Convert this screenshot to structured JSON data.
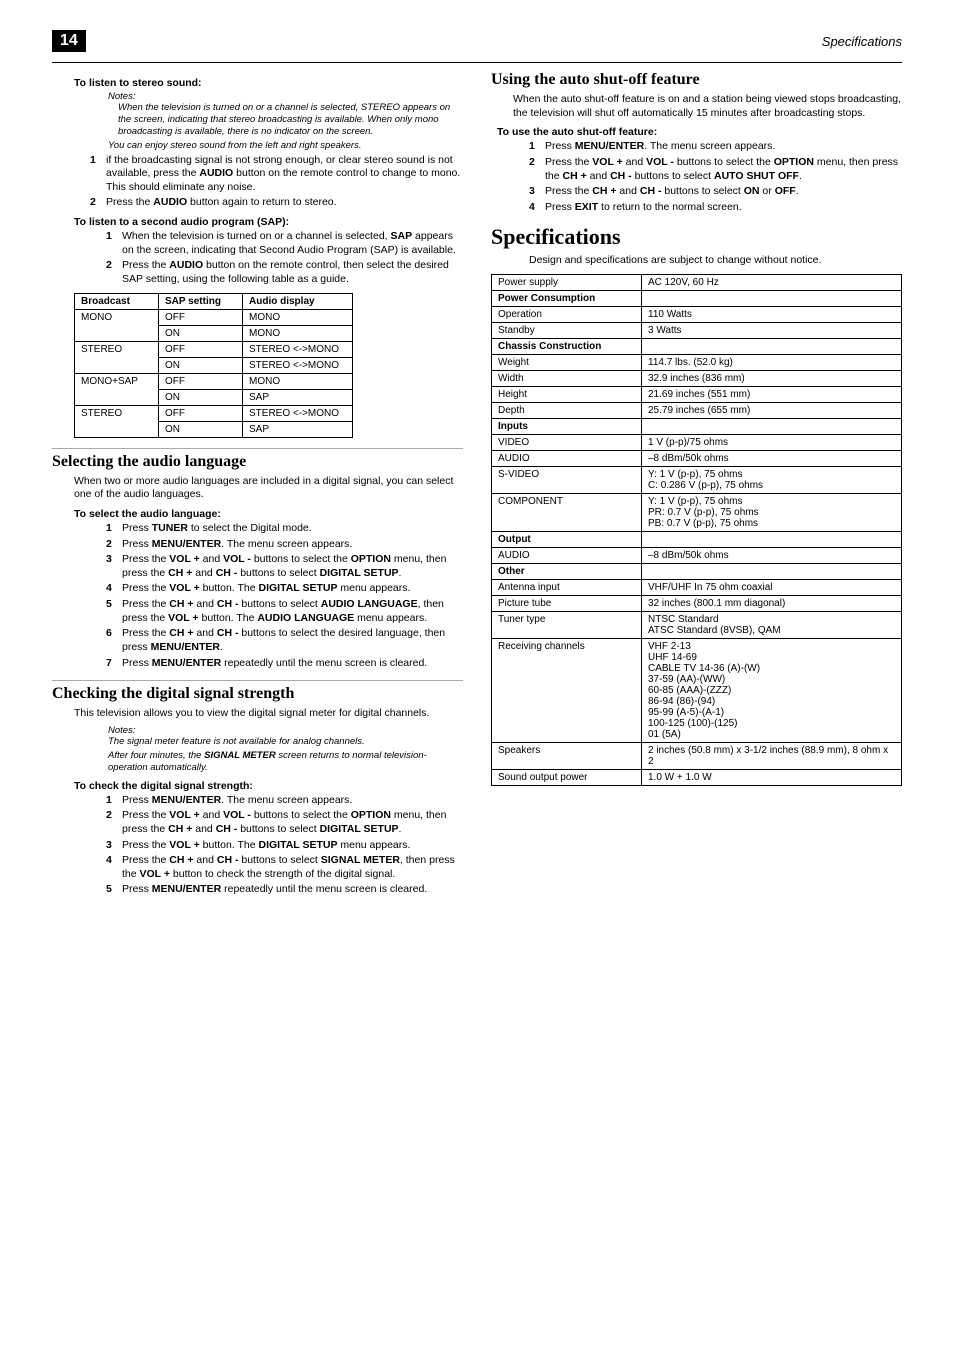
{
  "page_number": "14",
  "header_right": "Specifications",
  "left": {
    "stereo_heading": "To listen to stereo sound:",
    "notes_label": "Notes:",
    "note1": "When the television is turned on or a channel is selected, STEREO appears on the screen, indicating that stereo broadcasting is available. When only mono broadcasting is available, there is no indicator on the screen.",
    "note2": "You can enjoy stereo sound from the left and right speakers.",
    "stereo_steps": [
      {
        "n": "1",
        "pre": "if the broadcasting signal is not strong enough, or clear stereo sound is not available, press the ",
        "b1": "AUDIO",
        "post": " button on the remote control to change to mono. This should eliminate any noise."
      },
      {
        "n": "2",
        "pre": "Press the ",
        "b1": "AUDIO",
        "post": " button again to return to stereo."
      }
    ],
    "sap_heading": "To listen to a second audio program (SAP):",
    "sap_steps": [
      {
        "n": "1",
        "pre": "When the television is turned on or a channel is selected, ",
        "b1": "SAP",
        "post": " appears on the screen, indicating that Second Audio Program (SAP) is available."
      },
      {
        "n": "2",
        "pre": "Press the ",
        "b1": "AUDIO",
        "post": " button on the remote control, then select the desired SAP setting, using the following table as a guide."
      }
    ],
    "broadcast_table": {
      "headers": [
        "Broadcast",
        "SAP setting",
        "Audio display"
      ],
      "rows": [
        [
          "MONO",
          "OFF",
          "MONO"
        ],
        [
          "",
          "ON",
          "MONO"
        ],
        [
          "STEREO",
          "OFF",
          "STEREO <->MONO"
        ],
        [
          "",
          "ON",
          "STEREO <->MONO"
        ],
        [
          "MONO+SAP",
          "OFF",
          "MONO"
        ],
        [
          "",
          "ON",
          "SAP"
        ],
        [
          "STEREO",
          "OFF",
          "STEREO <->MONO"
        ],
        [
          "",
          "ON",
          "SAP"
        ]
      ]
    },
    "audio_lang_h2": "Selecting the audio language",
    "audio_lang_intro": "When two or more audio languages are included in a digital signal, you can select one of the audio languages.",
    "audio_lang_sub": "To select the audio language:",
    "audio_lang_steps": [
      {
        "n": "1",
        "text": "Press <b>TUNER</b> to select the Digital mode."
      },
      {
        "n": "2",
        "text": "Press <b>MENU/ENTER</b>. The menu screen appears."
      },
      {
        "n": "3",
        "text": "Press the <b>VOL +</b> and <b>VOL -</b> buttons to select the <b>OPTION</b> menu, then press the <b>CH +</b> and <b>CH -</b> buttons to select <b>DIGITAL SETUP</b>."
      },
      {
        "n": "4",
        "text": "Press the <b>VOL +</b> button. The <b>DIGITAL SETUP</b> menu appears."
      },
      {
        "n": "5",
        "text": "Press the <b>CH +</b> and <b>CH -</b> buttons to select <b>AUDIO LANGUAGE</b>, then press the <b>VOL +</b> button. The <b>AUDIO LANGUAGE</b> menu appears."
      },
      {
        "n": "6",
        "text": "Press the <b>CH +</b> and <b>CH -</b> buttons to select the desired language, then press <b>MENU/ENTER</b>."
      },
      {
        "n": "7",
        "text": "Press <b>MENU/ENTER</b> repeatedly until the menu screen is cleared."
      }
    ],
    "signal_h2": "Checking the digital signal strength",
    "signal_intro": "This television allows you to view the digital signal meter for digital channels.",
    "signal_notes_label": "Notes:",
    "signal_note1": "The signal meter feature is not available for analog channels.",
    "signal_note2": "After four minutes, the <b>SIGNAL METER</b> screen returns to normal television-operation automatically.",
    "signal_sub": "To check the digital signal strength:",
    "signal_steps": [
      {
        "n": "1",
        "text": "Press <b>MENU/ENTER</b>. The menu screen appears."
      },
      {
        "n": "2",
        "text": "Press the <b>VOL +</b> and <b>VOL -</b> buttons to select the <b>OPTION</b> menu, then press the <b>CH +</b> and <b>CH -</b> buttons to select <b>DIGITAL SETUP</b>."
      },
      {
        "n": "3",
        "text": "Press the <b>VOL +</b> button. The <b>DIGITAL SETUP</b> menu appears."
      },
      {
        "n": "4",
        "text": "Press the <b>CH +</b> and <b>CH -</b> buttons to select <b>SIGNAL METER</b>, then press the <b>VOL +</b> button to check the strength of the digital signal."
      },
      {
        "n": "5",
        "text": "Press <b>MENU/ENTER</b> repeatedly until the menu screen is cleared."
      }
    ]
  },
  "right": {
    "shutoff_h2": "Using the auto shut-off feature",
    "shutoff_intro": "When the auto shut-off feature is on and a station being viewed stops broadcasting, the television will shut off automatically 15 minutes after broadcasting stops.",
    "shutoff_sub": "To use the auto shut-off feature:",
    "shutoff_steps": [
      {
        "n": "1",
        "text": "Press <b>MENU/ENTER</b>. The menu screen appears."
      },
      {
        "n": "2",
        "text": "Press the <b>VOL +</b> and <b>VOL -</b> buttons to select the <b>OPTION</b> menu, then press the <b>CH +</b> and <b>CH -</b> buttons to select <b>AUTO SHUT OFF</b>."
      },
      {
        "n": "3",
        "text": "Press the <b>CH +</b> and <b>CH -</b> buttons to select <b>ON</b> or <b>OFF</b>."
      },
      {
        "n": "4",
        "text": "Press <b>EXIT</b> to return to the normal screen."
      }
    ],
    "spec_h1": "Specifications",
    "spec_intro": "Design and specifications are subject to change without notice.",
    "spec_rows": [
      {
        "k": "Power supply",
        "v": "AC 120V, 60 Hz"
      },
      {
        "section": "Power Consumption"
      },
      {
        "k": "Operation",
        "v": "110 Watts"
      },
      {
        "k": "Standby",
        "v": "3 Watts"
      },
      {
        "section": "Chassis Construction"
      },
      {
        "k": "Weight",
        "v": "114.7 lbs. (52.0 kg)"
      },
      {
        "k": "Width",
        "v": "32.9 inches (836 mm)"
      },
      {
        "k": "Height",
        "v": "21.69 inches (551 mm)"
      },
      {
        "k": "Depth",
        "v": "25.79 inches (655 mm)"
      },
      {
        "section": "Inputs"
      },
      {
        "k": "VIDEO",
        "v": "1 V (p-p)/75 ohms"
      },
      {
        "k": "AUDIO",
        "v": "–8 dBm/50k ohms"
      },
      {
        "k": "S-VIDEO",
        "v": "Y: 1 V (p-p), 75 ohms\nC: 0.286 V (p-p), 75 ohms"
      },
      {
        "k": "COMPONENT",
        "v": "Y: 1 V (p-p), 75 ohms\nPR: 0.7 V (p-p), 75 ohms\nPB: 0.7 V (p-p), 75 ohms"
      },
      {
        "section": "Output"
      },
      {
        "k": "AUDIO",
        "v": "–8 dBm/50k ohms"
      },
      {
        "section": "Other"
      },
      {
        "k": "Antenna input",
        "v": "VHF/UHF In 75 ohm coaxial"
      },
      {
        "k": "Picture tube",
        "v": "32 inches (800.1 mm diagonal)"
      },
      {
        "k": "Tuner type",
        "v": "NTSC Standard\nATSC Standard (8VSB), QAM"
      },
      {
        "k": "Receiving channels",
        "v": "VHF 2-13\nUHF 14-69\nCABLE TV 14-36 (A)-(W)\n37-59 (AA)-(WW)\n60-85 (AAA)-(ZZZ)\n86-94 (86)-(94)\n95-99 (A-5)-(A-1)\n100-125 (100)-(125)\n01 (5A)"
      },
      {
        "k": "Speakers",
        "v": "2 inches (50.8 mm) x 3-1/2 inches (88.9 mm), 8 ohm x 2"
      },
      {
        "k": "Sound output power",
        "v": "1.0 W + 1.0 W"
      }
    ]
  }
}
